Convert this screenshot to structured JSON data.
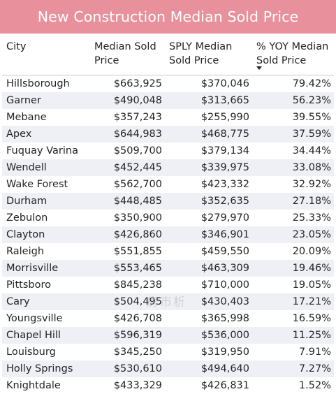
{
  "title": "New Construction Median Sold Price",
  "columns": {
    "city": "City",
    "median": "Median Sold Price",
    "sply": "SPLY Median Sold Price",
    "yoy": "% YOY Median Sold Price"
  },
  "sort_icon": "sort-descending-icon",
  "rows": [
    {
      "city": "Hillsborough",
      "median": "$663,925",
      "sply": "$370,046",
      "yoy": "79.42%"
    },
    {
      "city": "Garner",
      "median": "$490,048",
      "sply": "$313,665",
      "yoy": "56.23%"
    },
    {
      "city": "Mebane",
      "median": "$357,243",
      "sply": "$255,990",
      "yoy": "39.55%"
    },
    {
      "city": "Apex",
      "median": "$644,983",
      "sply": "$468,775",
      "yoy": "37.59%"
    },
    {
      "city": "Fuquay Varina",
      "median": "$509,700",
      "sply": "$379,134",
      "yoy": "34.44%"
    },
    {
      "city": "Wendell",
      "median": "$452,445",
      "sply": "$339,975",
      "yoy": "33.08%"
    },
    {
      "city": "Wake Forest",
      "median": "$562,700",
      "sply": "$423,332",
      "yoy": "32.92%"
    },
    {
      "city": "Durham",
      "median": "$448,485",
      "sply": "$352,635",
      "yoy": "27.18%"
    },
    {
      "city": "Zebulon",
      "median": "$350,900",
      "sply": "$279,970",
      "yoy": "25.33%"
    },
    {
      "city": "Clayton",
      "median": "$426,860",
      "sply": "$346,901",
      "yoy": "23.05%"
    },
    {
      "city": "Raleigh",
      "median": "$551,855",
      "sply": "$459,550",
      "yoy": "20.09%"
    },
    {
      "city": "Morrisville",
      "median": "$553,465",
      "sply": "$463,309",
      "yoy": "19.46%"
    },
    {
      "city": "Pittsboro",
      "median": "$845,238",
      "sply": "$710,000",
      "yoy": "19.05%"
    },
    {
      "city": "Cary",
      "median": "$504,495",
      "sply": "$430,403",
      "yoy": "17.21%"
    },
    {
      "city": "Youngsville",
      "median": "$426,708",
      "sply": "$365,998",
      "yoy": "16.59%"
    },
    {
      "city": "Chapel Hill",
      "median": "$596,319",
      "sply": "$536,000",
      "yoy": "11.25%"
    },
    {
      "city": "Louisburg",
      "median": "$345,250",
      "sply": "$319,950",
      "yoy": "7.91%"
    },
    {
      "city": "Holly Springs",
      "median": "$530,610",
      "sply": "$494,640",
      "yoy": "7.27%"
    },
    {
      "city": "Knightdale",
      "median": "$433,329",
      "sply": "$426,831",
      "yoy": "1.52%"
    }
  ],
  "watermark": "房市析"
}
